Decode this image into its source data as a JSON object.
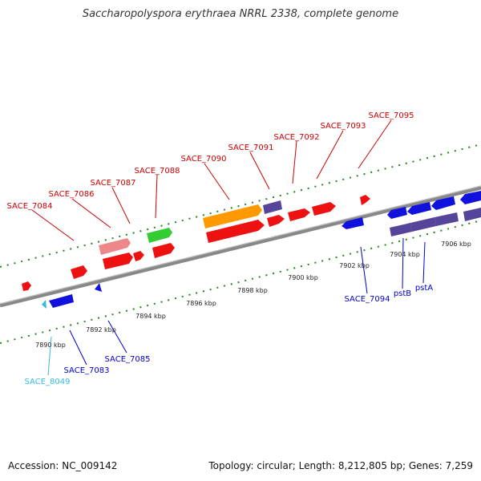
{
  "title": "Saccharopolyspora erythraea NRRL 2338, complete genome",
  "footer": {
    "accession": "Accession: NC_009142",
    "summary": "Topology: circular; Length: 8,212,805 bp; Genes: 7,259"
  },
  "colors": {
    "forward_label": "#cc0000",
    "reverse_label": "#0000cc",
    "reverse_label_light": "#33bbdd",
    "backbone": "#888888",
    "tick": "#228822",
    "red_gene": "#ee1111",
    "pink_gene": "#ee8888",
    "green_gene": "#33cc33",
    "orange_gene": "#ff9900",
    "purple_gene": "#554499",
    "blue_gene": "#1111dd",
    "cyan_gene": "#33bbdd"
  },
  "scale": {
    "labels": [
      "7890 kbp",
      "7892 kbp",
      "7894 kbp",
      "7896 kbp",
      "7898 kbp",
      "7900 kbp",
      "7902 kbp",
      "7904 kbp",
      "7906 kbp"
    ]
  },
  "forward_labels": [
    "SACE_7084",
    "SACE_7086",
    "SACE_7087",
    "SACE_7088",
    "SACE_7090",
    "SACE_7091",
    "SACE_7092",
    "SACE_7093",
    "SACE_7095"
  ],
  "reverse_labels": [
    "SACE_8049",
    "SACE_7083",
    "SACE_7085",
    "SACE_7094",
    "pstB",
    "pstA"
  ]
}
